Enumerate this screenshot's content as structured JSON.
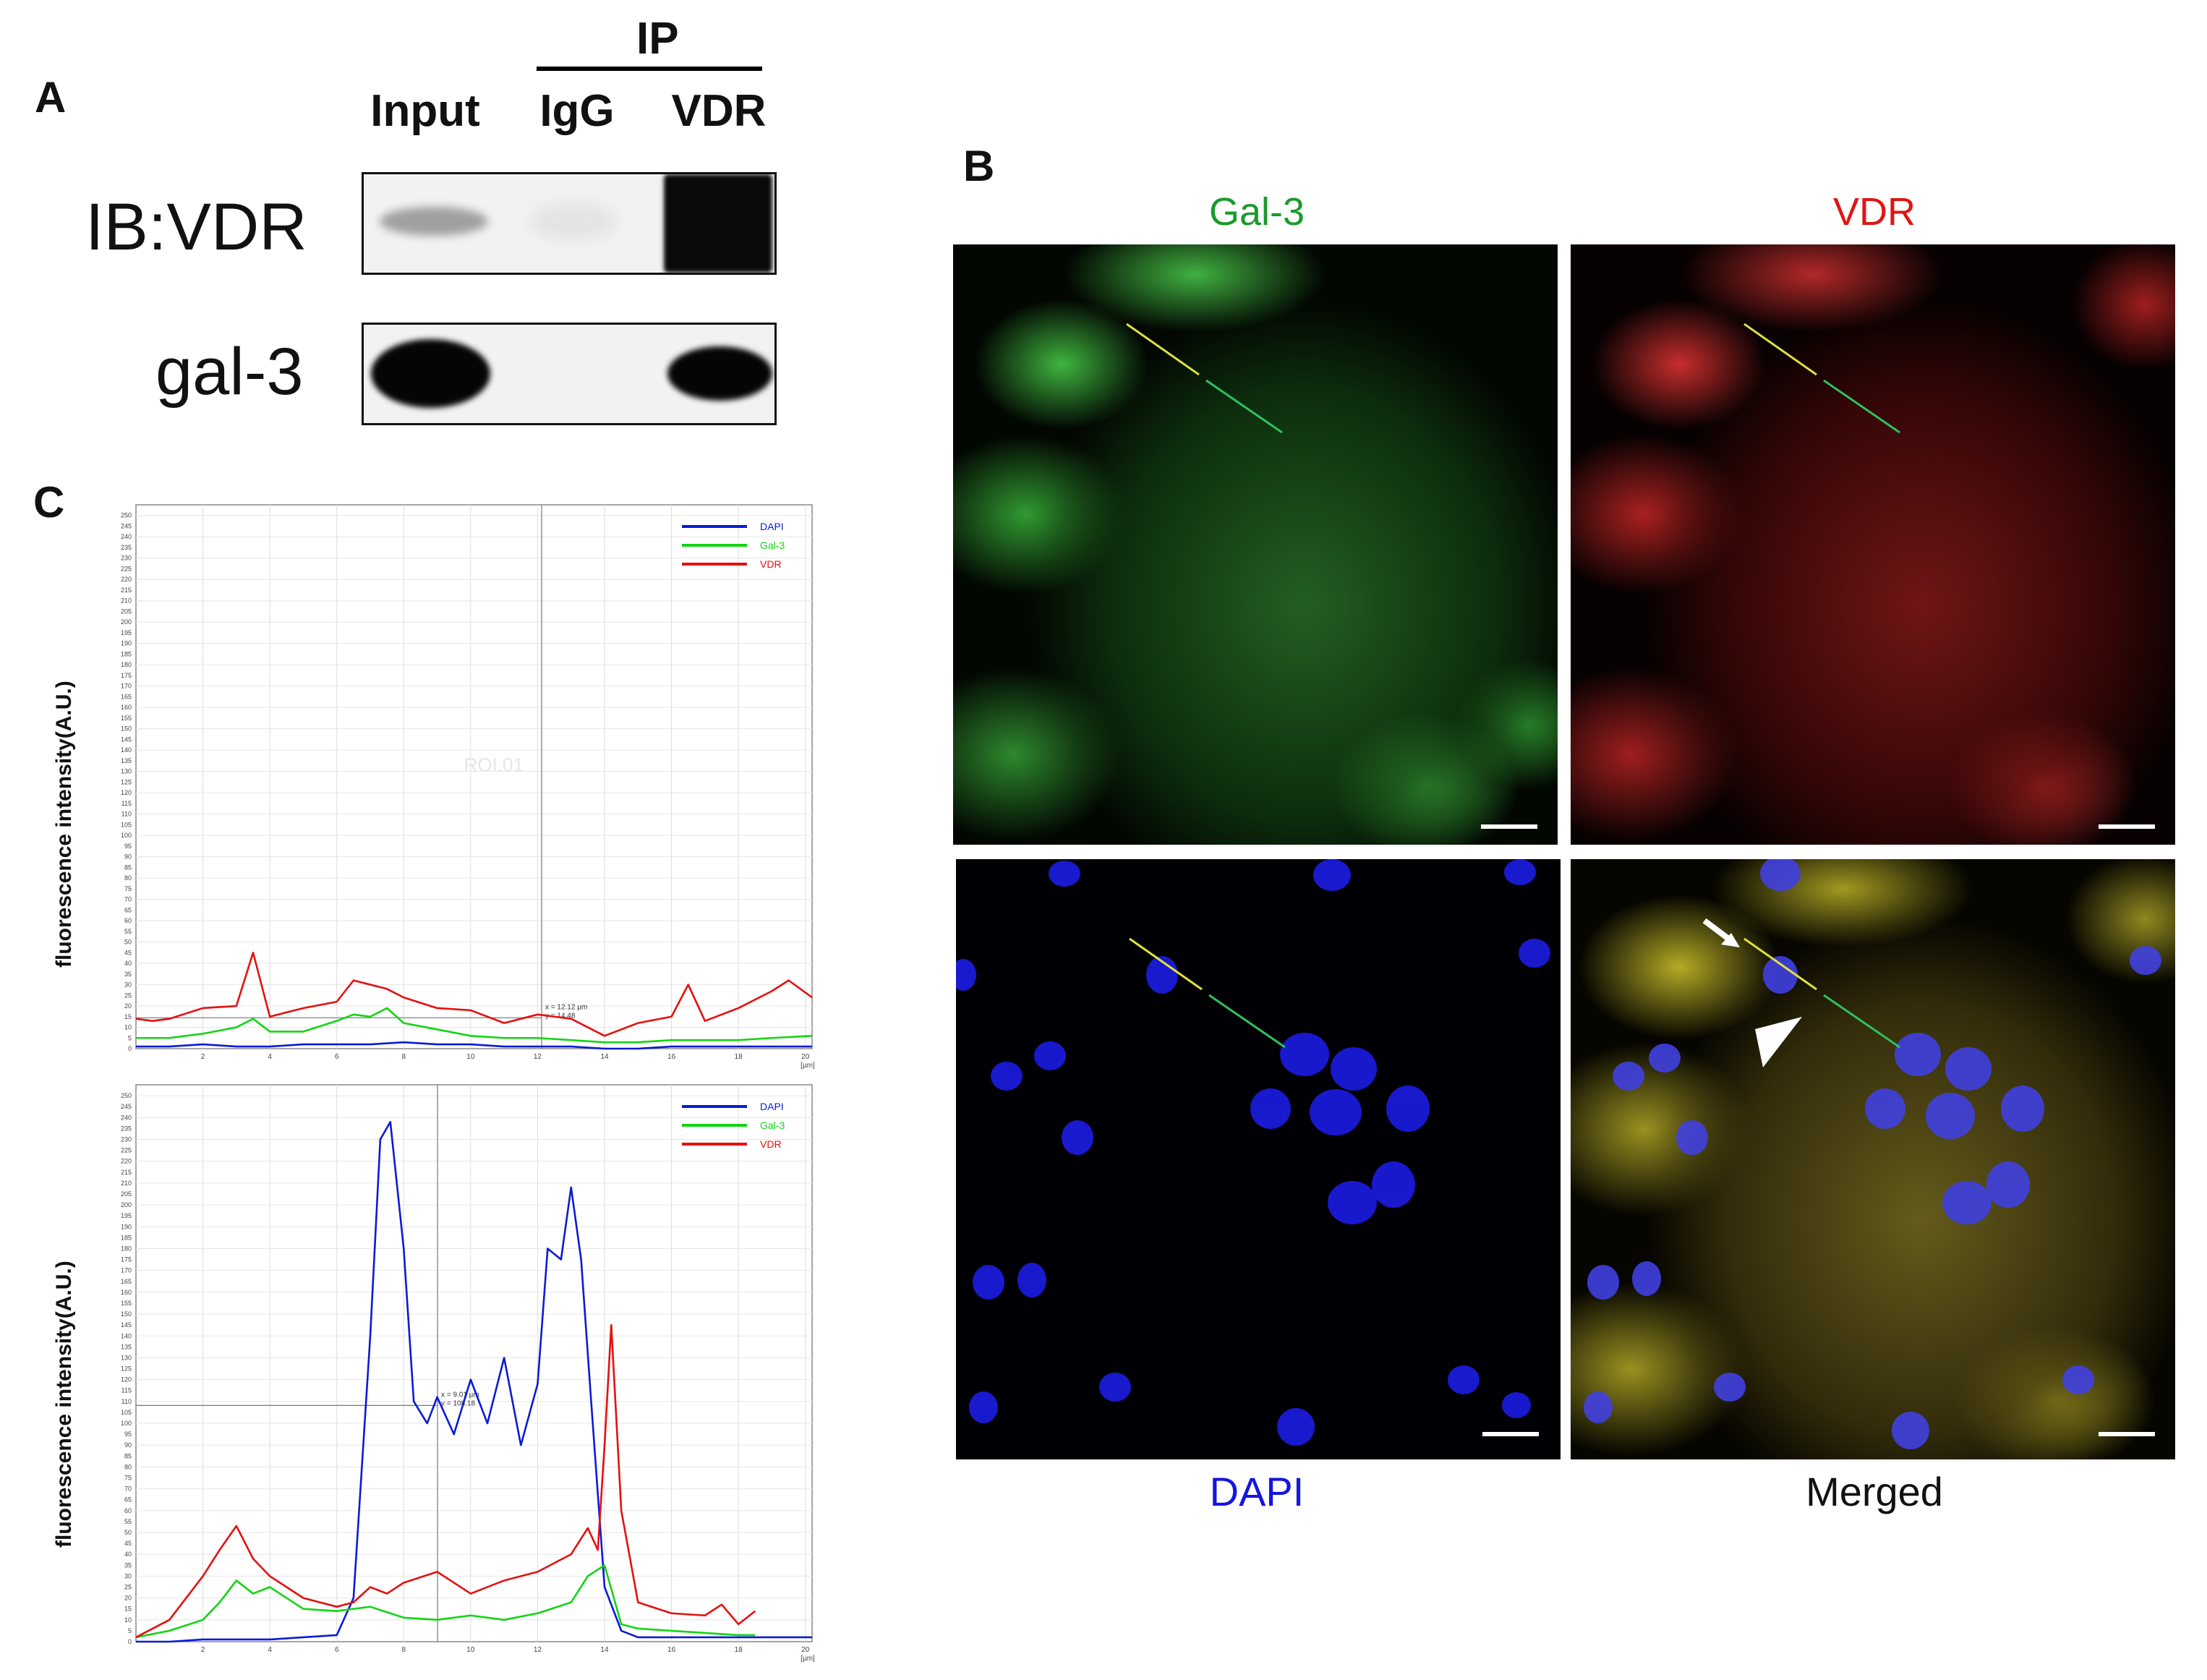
{
  "panel_a": {
    "letter": "A",
    "ip_label": "IP",
    "lanes": [
      "Input",
      "IgG",
      "VDR"
    ],
    "rows": [
      {
        "label": "IB:VDR",
        "bands": [
          0.25,
          0.03,
          0.95
        ]
      },
      {
        "label": "gal-3",
        "bands": [
          1.0,
          0.0,
          0.95
        ]
      }
    ]
  },
  "panel_b": {
    "letter": "B",
    "channels": [
      {
        "title": "Gal-3",
        "color": "#1a9a2a"
      },
      {
        "title": "VDR",
        "color": "#e01515"
      },
      {
        "title": "DAPI",
        "color": "#1515e0"
      },
      {
        "title": "Merged",
        "color": "#111111"
      }
    ]
  },
  "panel_c": {
    "letter": "C",
    "ylabel": "fluorescence intensity(A.U.)",
    "x_unit": "[µm]",
    "roi_label": "ROI.01",
    "legend": [
      {
        "name": "DAPI",
        "color": "#0b1bd6"
      },
      {
        "name": "Gal-3",
        "color": "#14d414"
      },
      {
        "name": "VDR",
        "color": "#e51010"
      }
    ],
    "y_ticks": [
      "0",
      "5",
      "10",
      "15",
      "20",
      "25",
      "30",
      "35",
      "40",
      "45",
      "50",
      "55",
      "60",
      "65",
      "70",
      "75",
      "80",
      "85",
      "90",
      "95",
      "100",
      "105",
      "110",
      "115",
      "120",
      "125",
      "130",
      "135",
      "140",
      "145",
      "150",
      "155",
      "160",
      "165",
      "170",
      "175",
      "180",
      "185",
      "190",
      "195",
      "200",
      "205",
      "210",
      "215",
      "220",
      "225",
      "230",
      "235",
      "240",
      "245",
      "250"
    ],
    "x_ticks": [
      "2",
      "4",
      "6",
      "8",
      "10",
      "12",
      "14",
      "16",
      "18",
      "20"
    ]
  },
  "chart_data": [
    {
      "type": "line",
      "xlabel": "[µm]",
      "ylabel": "fluorescence intensity(A.U.)",
      "xlim": [
        0,
        20.2
      ],
      "ylim": [
        0,
        255
      ],
      "grid": true,
      "legend_position": "top-right",
      "annotation": "x = 12.12 µm\ny = 14.48",
      "cursor": {
        "x": 12.12,
        "y": 14.48
      },
      "series": [
        {
          "name": "DAPI",
          "x": [
            0,
            1,
            2,
            3,
            4,
            5,
            6,
            7,
            8,
            9,
            10,
            11,
            12,
            13,
            14,
            15,
            16,
            17,
            18,
            19,
            20.2
          ],
          "values": [
            1,
            1,
            2,
            1,
            1,
            2,
            2,
            2,
            3,
            2,
            2,
            1,
            1,
            1,
            0,
            0,
            1,
            1,
            1,
            1,
            1
          ]
        },
        {
          "name": "Gal-3",
          "x": [
            0,
            1,
            2,
            3,
            3.5,
            4,
            5,
            6,
            6.5,
            7,
            7.5,
            8,
            9,
            10,
            11,
            12,
            13,
            14,
            15,
            16,
            17,
            18,
            19,
            20.2
          ],
          "values": [
            5,
            5,
            7,
            10,
            14,
            8,
            8,
            13,
            16,
            15,
            19,
            12,
            9,
            6,
            5,
            5,
            4,
            3,
            3,
            4,
            4,
            4,
            5,
            6
          ]
        },
        {
          "name": "VDR",
          "x": [
            0,
            0.5,
            1,
            2,
            3,
            3.5,
            4,
            5,
            6,
            6.5,
            7,
            7.5,
            8,
            9,
            10,
            11,
            12,
            13,
            14,
            15,
            16,
            16.5,
            17,
            18,
            19,
            19.5,
            20.2
          ],
          "values": [
            14,
            13,
            14,
            19,
            20,
            45,
            15,
            19,
            22,
            32,
            30,
            28,
            24,
            19,
            18,
            12,
            16,
            14,
            6,
            12,
            15,
            30,
            13,
            19,
            27,
            32,
            24
          ]
        }
      ]
    },
    {
      "type": "line",
      "xlabel": "[µm]",
      "ylabel": "fluorescence intensity(A.U.)",
      "xlim": [
        0,
        20.2
      ],
      "ylim": [
        0,
        255
      ],
      "grid": true,
      "legend_position": "top-right",
      "annotation": "x = 9.01 µm\ny = 108.18",
      "cursor": {
        "x": 9.01,
        "y": 108.18
      },
      "series": [
        {
          "name": "DAPI",
          "x": [
            0,
            1,
            2,
            3,
            4,
            5,
            6,
            6.5,
            7,
            7.3,
            7.6,
            8,
            8.3,
            8.7,
            9,
            9.5,
            10,
            10.5,
            11,
            11.5,
            12,
            12.3,
            12.7,
            13,
            13.3,
            13.6,
            14,
            14.5,
            15,
            16,
            17,
            18,
            19,
            20.2
          ],
          "values": [
            0,
            0,
            1,
            1,
            1,
            2,
            3,
            20,
            140,
            230,
            238,
            180,
            110,
            100,
            112,
            95,
            120,
            100,
            130,
            90,
            118,
            180,
            175,
            208,
            175,
            110,
            25,
            5,
            2,
            2,
            2,
            2,
            2,
            2
          ]
        },
        {
          "name": "Gal-3",
          "x": [
            0,
            1,
            2,
            2.5,
            3,
            3.5,
            4,
            5,
            6,
            7,
            8,
            9,
            10,
            11,
            12,
            13,
            13.5,
            14,
            14.5,
            15,
            16,
            17,
            18,
            18.5
          ],
          "values": [
            2,
            5,
            10,
            18,
            28,
            22,
            25,
            15,
            14,
            16,
            11,
            10,
            12,
            10,
            13,
            18,
            30,
            35,
            8,
            6,
            5,
            4,
            3,
            3
          ]
        },
        {
          "name": "VDR",
          "x": [
            0,
            1,
            2,
            2.5,
            3,
            3.5,
            4,
            4.5,
            5,
            6,
            6.5,
            7,
            7.5,
            8,
            9,
            10,
            11,
            12,
            13,
            13.5,
            13.8,
            14,
            14.2,
            14.5,
            15,
            16,
            17,
            17.5,
            18,
            18.5
          ],
          "values": [
            2,
            10,
            30,
            42,
            53,
            38,
            30,
            25,
            20,
            16,
            18,
            25,
            22,
            27,
            32,
            22,
            28,
            32,
            40,
            52,
            42,
            90,
            145,
            60,
            18,
            13,
            12,
            17,
            8,
            14
          ]
        }
      ]
    }
  ]
}
